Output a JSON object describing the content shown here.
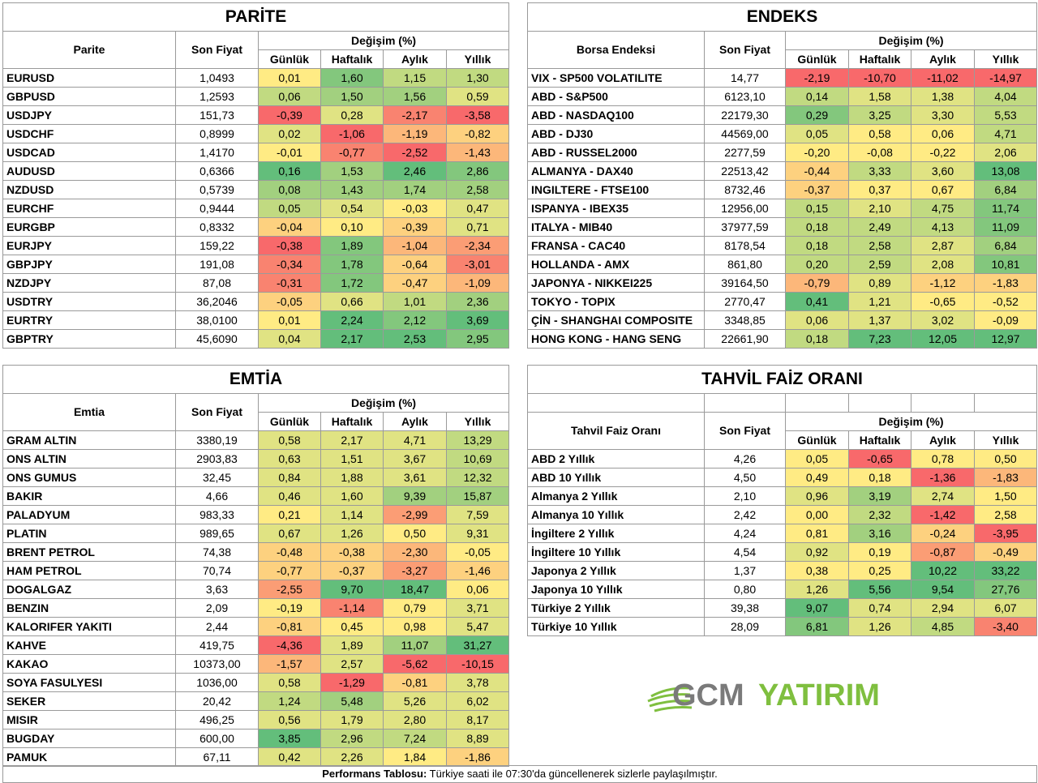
{
  "colors": {
    "scale": [
      "#f8696b",
      "#f98370",
      "#fb9d75",
      "#fcb77a",
      "#fdd17f",
      "#ffeb84",
      "#e0e383",
      "#c1da81",
      "#a2d07f",
      "#83c77d",
      "#63be7b"
    ]
  },
  "parite": {
    "title": "PARİTE",
    "col_name": "Parite",
    "col_price": "Son Fiyat",
    "col_change": "Değişim (%)",
    "col_daily": "Günlük",
    "col_weekly": "Haftalık",
    "col_monthly": "Aylık",
    "col_yearly": "Yıllık",
    "rows": [
      {
        "name": "EURUSD",
        "price": "1,0493",
        "d": "0,01",
        "w": "1,60",
        "m": "1,15",
        "y": "1,30"
      },
      {
        "name": "GBPUSD",
        "price": "1,2593",
        "d": "0,06",
        "w": "1,50",
        "m": "1,56",
        "y": "0,59"
      },
      {
        "name": "USDJPY",
        "price": "151,73",
        "d": "-0,39",
        "w": "0,28",
        "m": "-2,17",
        "y": "-3,58"
      },
      {
        "name": "USDCHF",
        "price": "0,8999",
        "d": "0,02",
        "w": "-1,06",
        "m": "-1,19",
        "y": "-0,82"
      },
      {
        "name": "USDCAD",
        "price": "1,4170",
        "d": "-0,01",
        "w": "-0,77",
        "m": "-2,52",
        "y": "-1,43"
      },
      {
        "name": "AUDUSD",
        "price": "0,6366",
        "d": "0,16",
        "w": "1,53",
        "m": "2,46",
        "y": "2,86"
      },
      {
        "name": "NZDUSD",
        "price": "0,5739",
        "d": "0,08",
        "w": "1,43",
        "m": "1,74",
        "y": "2,58"
      },
      {
        "name": "EURCHF",
        "price": "0,9444",
        "d": "0,05",
        "w": "0,54",
        "m": "-0,03",
        "y": "0,47"
      },
      {
        "name": "EURGBP",
        "price": "0,8332",
        "d": "-0,04",
        "w": "0,10",
        "m": "-0,39",
        "y": "0,71"
      },
      {
        "name": "EURJPY",
        "price": "159,22",
        "d": "-0,38",
        "w": "1,89",
        "m": "-1,04",
        "y": "-2,34"
      },
      {
        "name": "GBPJPY",
        "price": "191,08",
        "d": "-0,34",
        "w": "1,78",
        "m": "-0,64",
        "y": "-3,01"
      },
      {
        "name": "NZDJPY",
        "price": "87,08",
        "d": "-0,31",
        "w": "1,72",
        "m": "-0,47",
        "y": "-1,09"
      },
      {
        "name": "USDTRY",
        "price": "36,2046",
        "d": "-0,05",
        "w": "0,66",
        "m": "1,01",
        "y": "2,36"
      },
      {
        "name": "EURTRY",
        "price": "38,0100",
        "d": "0,01",
        "w": "2,24",
        "m": "2,12",
        "y": "3,69"
      },
      {
        "name": "GBPTRY",
        "price": "45,6090",
        "d": "0,04",
        "w": "2,17",
        "m": "2,53",
        "y": "2,95"
      }
    ]
  },
  "endeks": {
    "title": "ENDEKS",
    "col_name": "Borsa Endeksi",
    "col_price": "Son Fiyat",
    "col_change": "Değişim (%)",
    "col_daily": "Günlük",
    "col_weekly": "Haftalık",
    "col_monthly": "Aylık",
    "col_yearly": "Yıllık",
    "rows": [
      {
        "name": "VIX  - SP500 VOLATILITE",
        "price": "14,77",
        "d": "-2,19",
        "w": "-10,70",
        "m": "-11,02",
        "y": "-14,97"
      },
      {
        "name": "ABD - S&P500",
        "price": "6123,10",
        "d": "0,14",
        "w": "1,58",
        "m": "1,38",
        "y": "4,04"
      },
      {
        "name": "ABD - NASDAQ100",
        "price": "22179,30",
        "d": "0,29",
        "w": "3,25",
        "m": "3,30",
        "y": "5,53"
      },
      {
        "name": "ABD - DJ30",
        "price": "44569,00",
        "d": "0,05",
        "w": "0,58",
        "m": "0,06",
        "y": "4,71"
      },
      {
        "name": "ABD - RUSSEL2000",
        "price": "2277,59",
        "d": "-0,20",
        "w": "-0,08",
        "m": "-0,22",
        "y": "2,06"
      },
      {
        "name": "ALMANYA - DAX40",
        "price": "22513,42",
        "d": "-0,44",
        "w": "3,33",
        "m": "3,60",
        "y": "13,08"
      },
      {
        "name": "INGILTERE - FTSE100",
        "price": "8732,46",
        "d": "-0,37",
        "w": "0,37",
        "m": "0,67",
        "y": "6,84"
      },
      {
        "name": "ISPANYA - IBEX35",
        "price": "12956,00",
        "d": "0,15",
        "w": "2,10",
        "m": "4,75",
        "y": "11,74"
      },
      {
        "name": "ITALYA - MIB40",
        "price": "37977,59",
        "d": "0,18",
        "w": "2,49",
        "m": "4,13",
        "y": "11,09"
      },
      {
        "name": "FRANSA - CAC40",
        "price": "8178,54",
        "d": "0,18",
        "w": "2,58",
        "m": "2,87",
        "y": "6,84"
      },
      {
        "name": "HOLLANDA - AMX",
        "price": "861,80",
        "d": "0,20",
        "w": "2,59",
        "m": "2,08",
        "y": "10,81"
      },
      {
        "name": "JAPONYA - NIKKEI225",
        "price": "39164,50",
        "d": "-0,79",
        "w": "0,89",
        "m": "-1,12",
        "y": "-1,83"
      },
      {
        "name": "TOKYO - TOPIX",
        "price": "2770,47",
        "d": "0,41",
        "w": "1,21",
        "m": "-0,65",
        "y": "-0,52"
      },
      {
        "name": "ÇİN - SHANGHAI COMPOSITE",
        "price": "3348,85",
        "d": "0,06",
        "w": "1,37",
        "m": "3,02",
        "y": "-0,09"
      },
      {
        "name": "HONG KONG - HANG SENG",
        "price": "22661,90",
        "d": "0,18",
        "w": "7,23",
        "m": "12,05",
        "y": "12,97"
      }
    ]
  },
  "emtia": {
    "title": "EMTİA",
    "col_name": "Emtia",
    "col_price": "Son Fiyat",
    "col_change": "Değişim (%)",
    "col_daily": "Günlük",
    "col_weekly": "Haftalık",
    "col_monthly": "Aylık",
    "col_yearly": "Yıllık",
    "rows": [
      {
        "name": "GRAM ALTIN",
        "price": "3380,19",
        "d": "0,58",
        "w": "2,17",
        "m": "4,71",
        "y": "13,29"
      },
      {
        "name": "ONS ALTIN",
        "price": "2903,83",
        "d": "0,63",
        "w": "1,51",
        "m": "3,67",
        "y": "10,69"
      },
      {
        "name": "ONS GUMUS",
        "price": "32,45",
        "d": "0,84",
        "w": "1,88",
        "m": "3,61",
        "y": "12,32"
      },
      {
        "name": "BAKIR",
        "price": "4,66",
        "d": "0,46",
        "w": "1,60",
        "m": "9,39",
        "y": "15,87"
      },
      {
        "name": "PALADYUM",
        "price": "983,33",
        "d": "0,21",
        "w": "1,14",
        "m": "-2,99",
        "y": "7,59"
      },
      {
        "name": "PLATIN",
        "price": "989,65",
        "d": "0,67",
        "w": "1,26",
        "m": "0,50",
        "y": "9,31"
      },
      {
        "name": "BRENT PETROL",
        "price": "74,38",
        "d": "-0,48",
        "w": "-0,38",
        "m": "-2,30",
        "y": "-0,05"
      },
      {
        "name": "HAM PETROL",
        "price": "70,74",
        "d": "-0,77",
        "w": "-0,37",
        "m": "-3,27",
        "y": "-1,46"
      },
      {
        "name": "DOGALGAZ",
        "price": "3,63",
        "d": "-2,55",
        "w": "9,70",
        "m": "18,47",
        "y": "0,06"
      },
      {
        "name": "BENZIN",
        "price": "2,09",
        "d": "-0,19",
        "w": "-1,14",
        "m": "0,79",
        "y": "3,71"
      },
      {
        "name": "KALORIFER YAKITI",
        "price": "2,44",
        "d": "-0,81",
        "w": "0,45",
        "m": "0,98",
        "y": "5,47"
      },
      {
        "name": "KAHVE",
        "price": "419,75",
        "d": "-4,36",
        "w": "1,89",
        "m": "11,07",
        "y": "31,27"
      },
      {
        "name": "KAKAO",
        "price": "10373,00",
        "d": "-1,57",
        "w": "2,57",
        "m": "-5,62",
        "y": "-10,15"
      },
      {
        "name": "SOYA FASULYESI",
        "price": "1036,00",
        "d": "0,58",
        "w": "-1,29",
        "m": "-0,81",
        "y": "3,78"
      },
      {
        "name": "SEKER",
        "price": "20,42",
        "d": "1,24",
        "w": "5,48",
        "m": "5,26",
        "y": "6,02"
      },
      {
        "name": "MISIR",
        "price": "496,25",
        "d": "0,56",
        "w": "1,79",
        "m": "2,80",
        "y": "8,17"
      },
      {
        "name": "BUGDAY",
        "price": "600,00",
        "d": "3,85",
        "w": "2,96",
        "m": "7,24",
        "y": "8,89"
      },
      {
        "name": "PAMUK",
        "price": "67,11",
        "d": "0,42",
        "w": "2,26",
        "m": "1,84",
        "y": "-1,86"
      }
    ]
  },
  "tahvil": {
    "title": "TAHVİL FAİZ ORANI",
    "col_name": "Tahvil Faiz Oranı",
    "col_price": "Son Fiyat",
    "col_change": "Değişim (%)",
    "col_daily": "Günlük",
    "col_weekly": "Haftalık",
    "col_monthly": "Aylık",
    "col_yearly": "Yıllık",
    "rows": [
      {
        "name": "ABD 2 Yıllık",
        "price": "4,26",
        "d": "0,05",
        "w": "-0,65",
        "m": "0,78",
        "y": "0,50"
      },
      {
        "name": "ABD 10 Yıllık",
        "price": "4,50",
        "d": "0,49",
        "w": "0,18",
        "m": "-1,36",
        "y": "-1,83"
      },
      {
        "name": "Almanya 2 Yıllık",
        "price": "2,10",
        "d": "0,96",
        "w": "3,19",
        "m": "2,74",
        "y": "1,50"
      },
      {
        "name": "Almanya 10 Yıllık",
        "price": "2,42",
        "d": "0,00",
        "w": "2,32",
        "m": "-1,42",
        "y": "2,58"
      },
      {
        "name": "İngiltere 2 Yıllık",
        "price": "4,24",
        "d": "0,81",
        "w": "3,16",
        "m": "-0,24",
        "y": "-3,95"
      },
      {
        "name": "İngiltere 10 Yıllık",
        "price": "4,54",
        "d": "0,92",
        "w": "0,19",
        "m": "-0,87",
        "y": "-0,49"
      },
      {
        "name": "Japonya 2 Yıllık",
        "price": "1,37",
        "d": "0,38",
        "w": "0,25",
        "m": "10,22",
        "y": "33,22"
      },
      {
        "name": "Japonya 10 Yıllık",
        "price": "0,80",
        "d": "1,26",
        "w": "5,56",
        "m": "9,54",
        "y": "27,76"
      },
      {
        "name": "Türkiye 2 Yıllık",
        "price": "39,38",
        "d": "9,07",
        "w": "0,74",
        "m": "2,94",
        "y": "6,07"
      },
      {
        "name": "Türkiye 10 Yıllık",
        "price": "28,09",
        "d": "6,81",
        "w": "1,26",
        "m": "4,85",
        "y": "-3,40"
      }
    ]
  },
  "logo": {
    "text_gcm": "GCM",
    "text_yatirim": "YATIRIM",
    "green": "#7fbf3f",
    "gray": "#7a7a7a"
  },
  "footer": {
    "bold": "Performans Tablosu:",
    "text": " Türkiye saati ile 07:30'da güncellenerek sizlerle paylaşılmıştır."
  }
}
